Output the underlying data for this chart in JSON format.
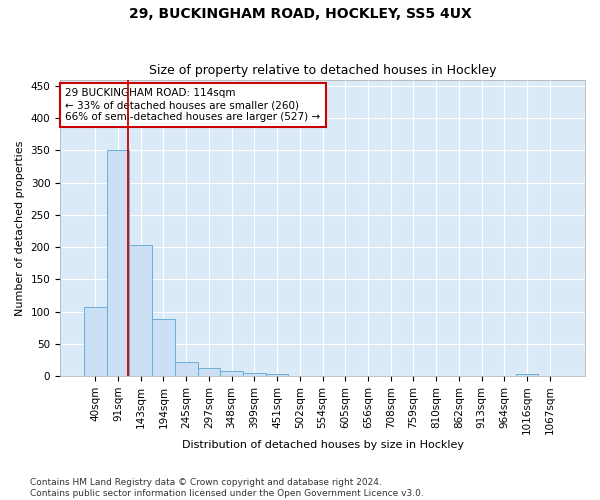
{
  "title": "29, BUCKINGHAM ROAD, HOCKLEY, SS5 4UX",
  "subtitle": "Size of property relative to detached houses in Hockley",
  "xlabel": "Distribution of detached houses by size in Hockley",
  "ylabel": "Number of detached properties",
  "bin_labels": [
    "40sqm",
    "91sqm",
    "143sqm",
    "194sqm",
    "245sqm",
    "297sqm",
    "348sqm",
    "399sqm",
    "451sqm",
    "502sqm",
    "554sqm",
    "605sqm",
    "656sqm",
    "708sqm",
    "759sqm",
    "810sqm",
    "862sqm",
    "913sqm",
    "964sqm",
    "1016sqm",
    "1067sqm"
  ],
  "bar_values": [
    107,
    350,
    203,
    88,
    22,
    13,
    8,
    5,
    3,
    0,
    0,
    0,
    0,
    0,
    0,
    0,
    0,
    0,
    0,
    4,
    0
  ],
  "bar_color": "#cce0f5",
  "bar_edge_color": "#6aaed6",
  "background_color": "#daeaf7",
  "grid_color": "#ffffff",
  "red_line_x": 1.43,
  "annotation_text": "29 BUCKINGHAM ROAD: 114sqm\n← 33% of detached houses are smaller (260)\n66% of semi-detached houses are larger (527) →",
  "annotation_box_color": "#ffffff",
  "annotation_box_edge_color": "#cc0000",
  "ylim": [
    0,
    460
  ],
  "yticks": [
    0,
    50,
    100,
    150,
    200,
    250,
    300,
    350,
    400,
    450
  ],
  "footnote": "Contains HM Land Registry data © Crown copyright and database right 2024.\nContains public sector information licensed under the Open Government Licence v3.0.",
  "title_fontsize": 10,
  "subtitle_fontsize": 9,
  "axis_label_fontsize": 8,
  "tick_fontsize": 7.5,
  "annotation_fontsize": 7.5,
  "footnote_fontsize": 6.5
}
